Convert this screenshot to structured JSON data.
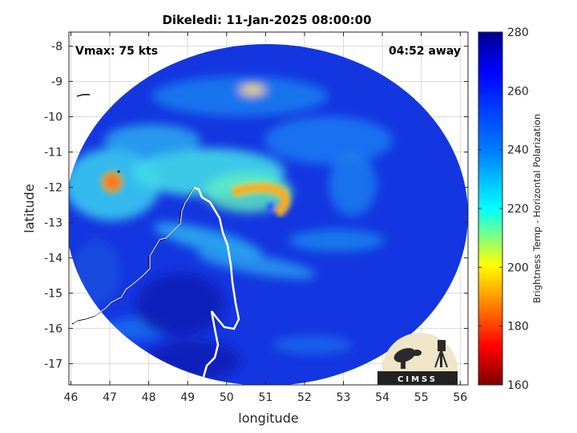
{
  "chart_data": {
    "type": "heatmap",
    "title": "Dikeledi: 11-Jan-2025 08:00:00",
    "xlabel": "longitude",
    "ylabel": "latitude",
    "xlim": [
      45.95,
      56.2
    ],
    "ylim": [
      -17.6,
      -7.6
    ],
    "xticks": [
      46,
      47,
      48,
      49,
      50,
      51,
      52,
      53,
      54,
      55,
      56
    ],
    "yticks": [
      -8,
      -9,
      -10,
      -11,
      -12,
      -13,
      -14,
      -15,
      -16,
      -17
    ],
    "grid": true,
    "annotations": {
      "vmax": "Vmax: 75 kts",
      "away": "04:52 away"
    },
    "storm_center": {
      "lon": 51.3,
      "lat": -12.4
    },
    "colorbar": {
      "label": "Brightness Temp - Horizontal Polarization",
      "range": [
        160,
        280
      ],
      "ticks": [
        280,
        260,
        240,
        220,
        200,
        180,
        160
      ],
      "colormap": [
        "#7f0000",
        "#ff0000",
        "#ff8000",
        "#ffff00",
        "#80ff80",
        "#00ffff",
        "#0080ff",
        "#0000ff",
        "#00008f"
      ]
    },
    "logo": {
      "text": "CIMSS"
    },
    "colors": {
      "coast": "#ffffff",
      "grid": "#d9d9d9",
      "background": "#ffffff"
    }
  }
}
